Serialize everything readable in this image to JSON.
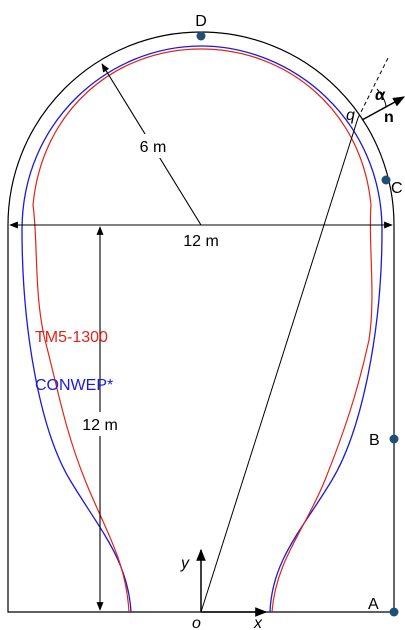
{
  "labels": {
    "point_d": "D",
    "point_c": "C",
    "point_b": "B",
    "point_a": "A",
    "point_q": "q",
    "angle": "α",
    "normal": "n",
    "radius": "6 m",
    "width": "12 m",
    "height": "12 m",
    "red_curve": "TM5-1300",
    "blue_curve": "CONWEP*",
    "axis_y": "y",
    "axis_x": "x",
    "origin": "o"
  }
}
